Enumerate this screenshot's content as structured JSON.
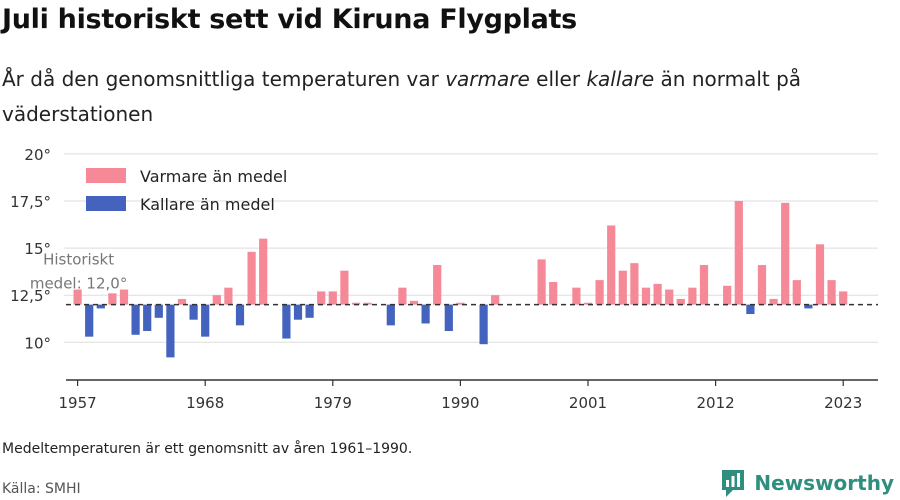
{
  "title": "Juli historiskt sett vid Kiruna Flygplats",
  "subtitle": {
    "part1": "År då den genomsnittliga temperaturen var ",
    "warmer_word": "varmare",
    "part2": " eller ",
    "colder_word": "kallare",
    "part3": " än normalt på väderstationen"
  },
  "note": "Medeltemperaturen är ett genomsnitt av åren 1961–1990.",
  "source": "Källa: SMHI",
  "brand": {
    "name": "Newsworthy",
    "color": "#2f8f7e"
  },
  "colors": {
    "warmer": "#f68997",
    "colder": "#4363be",
    "grid": "#dddddd",
    "axis": "#333333",
    "reference": "#333333"
  },
  "chart_data": {
    "type": "bar",
    "baseline": 12.0,
    "baseline_label_line1": "Historiskt",
    "baseline_label_line2": "medel: 12,0°",
    "ylim": [
      8.0,
      21.0
    ],
    "xlim": [
      1956,
      2026
    ],
    "yticks": [
      10,
      12.5,
      15,
      17.5,
      20
    ],
    "ytick_labels": [
      "10°",
      "12,5°",
      "15°",
      "17,5°",
      "20°"
    ],
    "xticks": [
      1957,
      1968,
      1979,
      1990,
      2001,
      2012,
      2023
    ],
    "xtick_labels": [
      "1957",
      "1968",
      "1979",
      "1990",
      "2001",
      "2012",
      "2023"
    ],
    "legend": [
      {
        "label": "Varmare än medel",
        "key": "warmer"
      },
      {
        "label": "Kallare än medel",
        "key": "colder"
      }
    ],
    "legend_position": "top-left",
    "years": [
      1957,
      1958,
      1959,
      1960,
      1961,
      1962,
      1963,
      1964,
      1965,
      1966,
      1967,
      1968,
      1969,
      1970,
      1971,
      1972,
      1973,
      1974,
      1975,
      1976,
      1977,
      1978,
      1979,
      1980,
      1981,
      1982,
      1983,
      1984,
      1985,
      1986,
      1987,
      1988,
      1989,
      1990,
      1991,
      1992,
      1993,
      1994,
      1995,
      1996,
      1997,
      1998,
      1999,
      2000,
      2001,
      2002,
      2003,
      2004,
      2005,
      2006,
      2007,
      2008,
      2009,
      2010,
      2011,
      2012,
      2013,
      2014,
      2015,
      2016,
      2017,
      2018,
      2019,
      2020,
      2021,
      2022,
      2023
    ],
    "values": [
      12.8,
      10.3,
      11.8,
      12.6,
      12.8,
      10.4,
      10.6,
      11.3,
      9.2,
      12.3,
      11.2,
      10.3,
      12.5,
      12.9,
      10.9,
      14.8,
      15.5,
      null,
      10.2,
      11.2,
      11.3,
      12.7,
      12.7,
      13.8,
      12.1,
      12.1,
      null,
      10.9,
      12.9,
      12.2,
      11.0,
      14.1,
      10.6,
      12.1,
      null,
      9.9,
      12.5,
      null,
      null,
      null,
      14.4,
      13.2,
      null,
      12.9,
      12.1,
      13.3,
      16.2,
      13.8,
      14.2,
      12.9,
      13.1,
      12.8,
      12.3,
      12.9,
      14.1,
      null,
      13.0,
      17.5,
      11.5,
      14.1,
      12.3,
      17.4,
      13.3,
      11.8,
      15.2,
      13.3,
      12.7
    ]
  }
}
